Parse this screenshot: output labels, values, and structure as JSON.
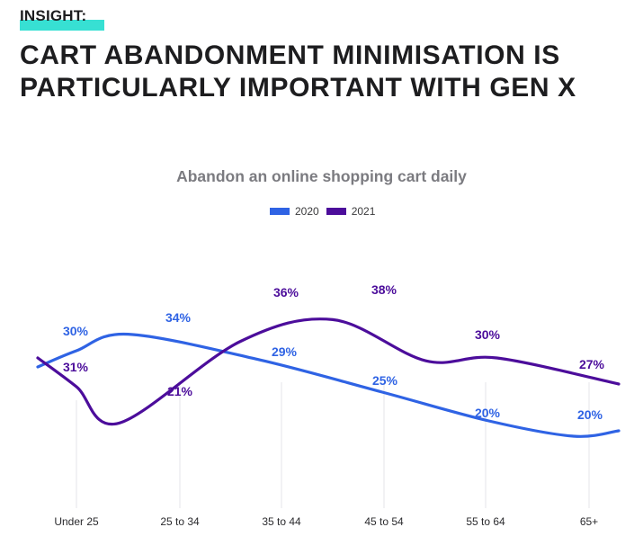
{
  "header": {
    "insight_label": "INSIGHT:",
    "headline": "CART ABANDONMENT MINIMISATION IS PARTICULARLY IMPORTANT WITH GEN X"
  },
  "colors": {
    "accent_cyan": "#37e0d3",
    "series_2020": "#2f63e4",
    "series_2021": "#4c0d9b"
  },
  "chart_data": {
    "type": "line",
    "title": "Abandon an online shopping cart daily",
    "categories": [
      "Under 25",
      "25 to 34",
      "35 to 44",
      "45 to 54",
      "55 to 64",
      "65+"
    ],
    "series": [
      {
        "name": "2020",
        "values": [
          30,
          34,
          29,
          25,
          20,
          20
        ],
        "labels": [
          "30%",
          "34%",
          "29%",
          "25%",
          "20%",
          "20%"
        ]
      },
      {
        "name": "2021",
        "values": [
          31,
          21,
          36,
          38,
          30,
          27
        ],
        "labels": [
          "31%",
          "21%",
          "36%",
          "38%",
          "30%",
          "27%"
        ]
      }
    ],
    "legend": [
      "2020",
      "2021"
    ],
    "legend_position": "top-center",
    "xlabel": "",
    "ylabel": "",
    "grid": false
  }
}
